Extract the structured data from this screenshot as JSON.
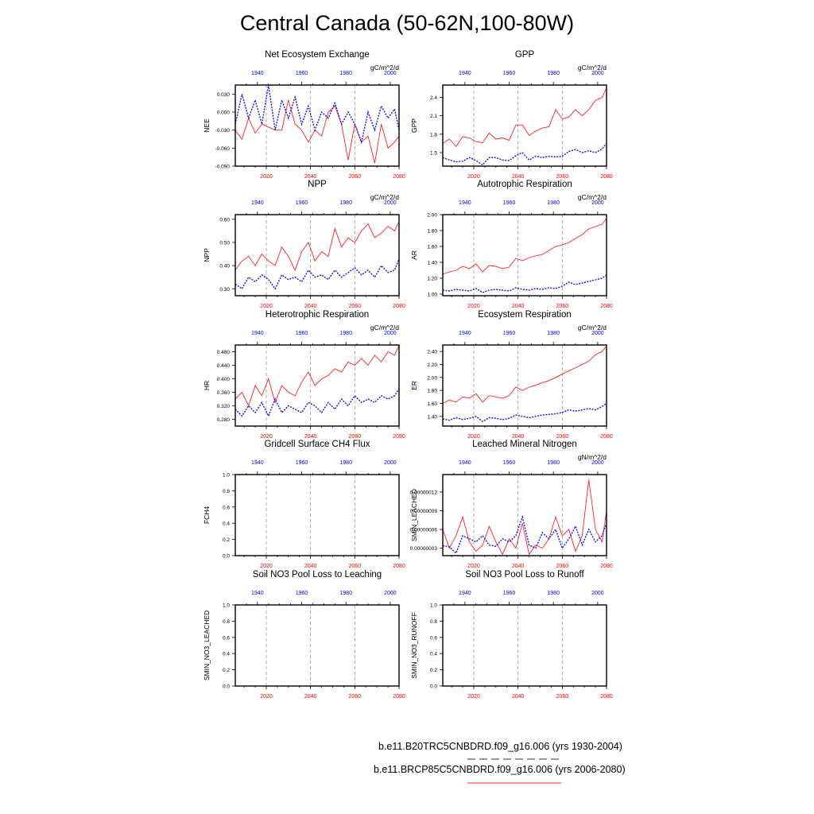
{
  "title": "Central Canada (50-62N,100-80W)",
  "colors": {
    "future": "#ff2020",
    "historical": "#1010ff",
    "grid": "#999999",
    "bottom_tick": "#ff0000",
    "top_tick": "#0000ff"
  },
  "legend": [
    {
      "label": "b.e11.B20TRC5CNBDRD.f09_g16.006 (yrs 1930-2004)",
      "style": "dashed"
    },
    {
      "label": "b.e11.BRCP85C5CNBDRD.f09_g16.006 (yrs 2006-2080)",
      "style": "solid"
    }
  ],
  "chart_data": {
    "type": "line",
    "x": [
      2006,
      2009,
      2012,
      2015,
      2018,
      2021,
      2024,
      2027,
      2030,
      2033,
      2036,
      2039,
      2042,
      2045,
      2048,
      2051,
      2054,
      2057,
      2060,
      2063,
      2066,
      2069,
      2072,
      2075,
      2078,
      2080
    ],
    "bottom_axis": {
      "range": [
        2006,
        2080
      ],
      "ticks": [
        "2020",
        "2040",
        "2060",
        "2080"
      ],
      "gridlines": [
        2020,
        2040,
        2060
      ]
    },
    "top_axis": {
      "range": [
        1930,
        2004
      ],
      "ticks": [
        "1940",
        "1960",
        "1980",
        "2000"
      ]
    },
    "panels": [
      {
        "title": "Net Ecosystem Exchange",
        "ylabel": "NEE",
        "units": "gC/m^2/d",
        "ylim": [
          -0.09,
          0.045
        ],
        "yticks": [
          -0.09,
          -0.06,
          -0.03,
          0,
          0.03
        ],
        "ytick_labels": [
          "-0.090",
          "-0.060",
          "-0.030",
          "0.000",
          "0.030"
        ],
        "future": [
          -0.03,
          -0.045,
          -0.01,
          -0.035,
          -0.02,
          -0.025,
          -0.03,
          -0.03,
          0.02,
          -0.02,
          -0.03,
          -0.05,
          -0.03,
          -0.04,
          0.0,
          0.01,
          -0.02,
          -0.08,
          -0.02,
          -0.05,
          -0.04,
          -0.085,
          -0.02,
          -0.06,
          -0.05,
          -0.04
        ],
        "historical": [
          -0.02,
          0.03,
          -0.01,
          0.02,
          -0.02,
          0.045,
          -0.03,
          0.02,
          -0.01,
          0.025,
          -0.02,
          0.01,
          -0.03,
          0.0,
          -0.01,
          0.015,
          -0.02,
          0.0,
          -0.02,
          -0.05,
          0.0,
          -0.03,
          0.01,
          -0.01,
          0.005,
          -0.03
        ]
      },
      {
        "title": "GPP",
        "ylabel": "GPP",
        "units": "gC/m^2/d",
        "ylim": [
          1.28,
          2.6
        ],
        "yticks": [
          1.5,
          1.8,
          2.1,
          2.4
        ],
        "ytick_labels": [
          "1.5",
          "1.8",
          "2.1",
          "2.4"
        ],
        "future": [
          1.65,
          1.72,
          1.6,
          1.76,
          1.74,
          1.68,
          1.66,
          1.82,
          1.72,
          1.74,
          1.7,
          1.95,
          1.95,
          1.78,
          1.85,
          1.9,
          1.92,
          2.2,
          2.05,
          2.08,
          2.2,
          2.1,
          2.2,
          2.35,
          2.4,
          2.55
        ],
        "historical": [
          1.42,
          1.38,
          1.35,
          1.36,
          1.42,
          1.37,
          1.3,
          1.42,
          1.42,
          1.38,
          1.37,
          1.45,
          1.5,
          1.38,
          1.44,
          1.42,
          1.44,
          1.43,
          1.44,
          1.52,
          1.55,
          1.5,
          1.53,
          1.5,
          1.56,
          1.65
        ]
      },
      {
        "title": "NPP",
        "ylabel": "NPP",
        "units": "gC/m^2/d",
        "ylim": [
          0.27,
          0.62
        ],
        "yticks": [
          0.3,
          0.4,
          0.5,
          0.6
        ],
        "ytick_labels": [
          "0.30",
          "0.40",
          "0.50",
          "0.60"
        ],
        "future": [
          0.38,
          0.42,
          0.44,
          0.4,
          0.45,
          0.42,
          0.4,
          0.48,
          0.44,
          0.38,
          0.46,
          0.5,
          0.42,
          0.46,
          0.44,
          0.56,
          0.48,
          0.52,
          0.5,
          0.55,
          0.58,
          0.52,
          0.54,
          0.57,
          0.55,
          0.59
        ],
        "historical": [
          0.32,
          0.3,
          0.35,
          0.33,
          0.36,
          0.34,
          0.3,
          0.36,
          0.34,
          0.35,
          0.33,
          0.38,
          0.35,
          0.36,
          0.34,
          0.38,
          0.35,
          0.37,
          0.39,
          0.36,
          0.38,
          0.35,
          0.4,
          0.37,
          0.38,
          0.43
        ]
      },
      {
        "title": "Autotrophic Respiration",
        "ylabel": "AR",
        "units": "gC/m^2/d",
        "ylim": [
          0.98,
          2.0
        ],
        "yticks": [
          1.0,
          1.2,
          1.4,
          1.6,
          1.8,
          2.0
        ],
        "ytick_labels": [
          "1.00",
          "1.20",
          "1.40",
          "1.60",
          "1.80",
          "2.00"
        ],
        "future": [
          1.25,
          1.28,
          1.3,
          1.35,
          1.32,
          1.38,
          1.28,
          1.36,
          1.35,
          1.32,
          1.34,
          1.45,
          1.42,
          1.46,
          1.48,
          1.5,
          1.55,
          1.6,
          1.62,
          1.65,
          1.7,
          1.75,
          1.82,
          1.85,
          1.88,
          1.95
        ],
        "historical": [
          1.05,
          1.04,
          1.06,
          1.05,
          1.04,
          1.07,
          1.02,
          1.05,
          1.06,
          1.05,
          1.04,
          1.08,
          1.06,
          1.05,
          1.07,
          1.06,
          1.08,
          1.07,
          1.1,
          1.15,
          1.12,
          1.14,
          1.16,
          1.18,
          1.2,
          1.24
        ]
      },
      {
        "title": "Heterotrophic Respiration",
        "ylabel": "HR",
        "units": "gC/m^2/d",
        "ylim": [
          0.26,
          0.5
        ],
        "yticks": [
          0.28,
          0.32,
          0.36,
          0.4,
          0.44,
          0.48
        ],
        "ytick_labels": [
          "0.280",
          "0.320",
          "0.360",
          "0.400",
          "0.440",
          "0.480"
        ],
        "future": [
          0.34,
          0.36,
          0.32,
          0.38,
          0.35,
          0.4,
          0.33,
          0.38,
          0.36,
          0.35,
          0.39,
          0.42,
          0.38,
          0.4,
          0.41,
          0.43,
          0.42,
          0.45,
          0.44,
          0.46,
          0.44,
          0.47,
          0.45,
          0.48,
          0.47,
          0.5
        ],
        "historical": [
          0.31,
          0.29,
          0.32,
          0.3,
          0.33,
          0.29,
          0.34,
          0.3,
          0.32,
          0.31,
          0.3,
          0.33,
          0.32,
          0.3,
          0.33,
          0.31,
          0.34,
          0.32,
          0.35,
          0.33,
          0.34,
          0.33,
          0.35,
          0.34,
          0.35,
          0.37
        ]
      },
      {
        "title": "Ecosystem Respiration",
        "ylabel": "ER",
        "units": "gC/m^2/d",
        "ylim": [
          1.25,
          2.5
        ],
        "yticks": [
          1.4,
          1.6,
          1.8,
          2.0,
          2.2,
          2.4
        ],
        "ytick_labels": [
          "1.40",
          "1.60",
          "1.80",
          "2.00",
          "2.20",
          "2.40"
        ],
        "future": [
          1.6,
          1.65,
          1.62,
          1.7,
          1.68,
          1.75,
          1.62,
          1.72,
          1.7,
          1.68,
          1.72,
          1.85,
          1.8,
          1.85,
          1.88,
          1.92,
          1.95,
          2.0,
          2.05,
          2.1,
          2.15,
          2.2,
          2.25,
          2.35,
          2.4,
          2.48
        ],
        "historical": [
          1.36,
          1.34,
          1.38,
          1.35,
          1.37,
          1.4,
          1.32,
          1.38,
          1.37,
          1.35,
          1.37,
          1.42,
          1.4,
          1.38,
          1.4,
          1.42,
          1.43,
          1.44,
          1.46,
          1.5,
          1.48,
          1.5,
          1.52,
          1.5,
          1.55,
          1.6
        ]
      },
      {
        "title": "Gridcell Surface CH4 Flux",
        "ylabel": "FCH4",
        "units": "",
        "ylim": [
          0,
          1
        ],
        "yticks": [
          0,
          0.2,
          0.4,
          0.6,
          0.8,
          1.0
        ],
        "ytick_labels": [
          "0.0",
          "0.2",
          "0.4",
          "0.6",
          "0.8",
          "1.0"
        ],
        "future": [],
        "historical": []
      },
      {
        "title": "Leached Mineral Nitrogen",
        "ylabel": "SMIN_LEACHED",
        "units": "gN/m^2/d",
        "ylim": [
          1.8e-08,
          1.48e-07
        ],
        "yticks": [
          3e-08,
          6e-08,
          9e-08,
          1.2e-07
        ],
        "ytick_labels": [
          "0.00000003",
          "0.00000006",
          "0.00000009",
          "0.00000012"
        ],
        "future": [
          6e-08,
          3e-08,
          5e-08,
          8e-08,
          4e-08,
          2.5e-08,
          3.5e-08,
          6.5e-08,
          4e-08,
          2e-08,
          4.5e-08,
          3e-08,
          7e-08,
          2e-08,
          3.5e-08,
          3e-08,
          4.5e-08,
          8e-08,
          5e-08,
          6e-08,
          2.5e-08,
          5e-08,
          1.4e-07,
          6e-08,
          4e-08,
          9e-08
        ],
        "historical": [
          3.4e-08,
          3.2e-08,
          2.2e-08,
          5e-08,
          4.5e-08,
          4e-08,
          5e-08,
          3.5e-08,
          3.3e-08,
          4.5e-08,
          4e-08,
          5e-08,
          8e-08,
          3.5e-08,
          3e-08,
          5.5e-08,
          4.5e-08,
          6e-08,
          3e-08,
          4.5e-08,
          6.5e-08,
          3.5e-08,
          6e-08,
          4e-08,
          5e-08,
          7e-08
        ]
      },
      {
        "title": "Soil NO3 Pool Loss to Leaching",
        "ylabel": "SMIN_NO3_LEACHED",
        "units": "",
        "ylim": [
          0,
          1
        ],
        "yticks": [
          0,
          0.2,
          0.4,
          0.6,
          0.8,
          1.0
        ],
        "ytick_labels": [
          "0.0",
          "0.2",
          "0.4",
          "0.6",
          "0.8",
          "1.0"
        ],
        "future": [],
        "historical": []
      },
      {
        "title": "Soil NO3 Pool Loss to Runoff",
        "ylabel": "SMIN_NO3_RUNOFF",
        "units": "",
        "ylim": [
          0,
          1
        ],
        "yticks": [
          0,
          0.2,
          0.4,
          0.6,
          0.8,
          1.0
        ],
        "ytick_labels": [
          "0.0",
          "0.2",
          "0.4",
          "0.6",
          "0.8",
          "1.0"
        ],
        "future": [],
        "historical": []
      }
    ]
  }
}
